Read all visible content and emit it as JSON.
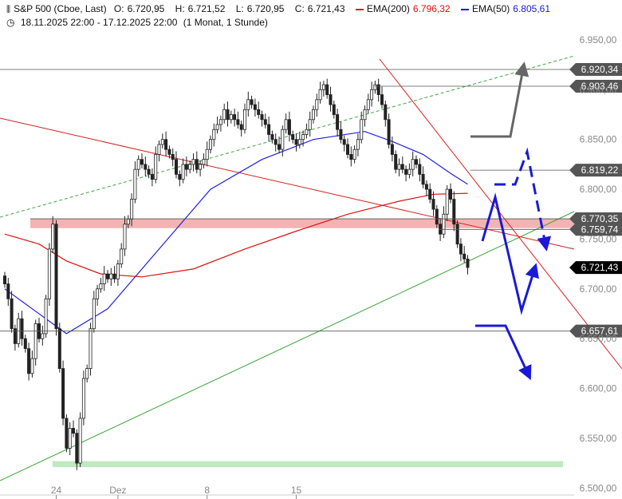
{
  "header": {
    "symbol_name": "S&P 500 (Cboe, Last)",
    "ohlc": {
      "o_label": "O:",
      "o": "6.720,95",
      "h_label": "H:",
      "h": "6.721,52",
      "l_label": "L:",
      "l": "6.720,95",
      "c_label": "C:",
      "c": "6.721,43"
    },
    "ema200_label": "EMA(200)",
    "ema200_value": "6.796,32",
    "ema200_color": "#e01010",
    "ema50_label": "EMA(50)",
    "ema50_value": "6.805,61",
    "ema50_color": "#1a1ad6",
    "range": "18.11.2025 22:00 - 17.12.2025 22:00",
    "interval": "(1 Monat, 1 Stunde)"
  },
  "chart_data": {
    "type": "candlestick",
    "y_axis": {
      "min": 6493,
      "max": 6958,
      "ticks": [
        6500,
        6550,
        6600,
        6650,
        6700,
        6750,
        6800,
        6850,
        6900,
        6950
      ],
      "tick_labels": [
        "6.500,00",
        "6.550,00",
        "6.600,00",
        "6.650,00",
        "6.700,00",
        "6.750,00",
        "6.800,00",
        "6.850,00",
        "6.900,00",
        "6.950,00"
      ]
    },
    "x_axis": {
      "tick_labels": [
        "24",
        "Dez",
        "8",
        "15"
      ],
      "tick_index": [
        15,
        33,
        59,
        85
      ]
    },
    "close_series": [
      6705,
      6690,
      6660,
      6645,
      6670,
      6650,
      6640,
      6615,
      6630,
      6665,
      6650,
      6655,
      6690,
      6740,
      6765,
      6660,
      6620,
      6570,
      6540,
      6560,
      6555,
      6525,
      6570,
      6610,
      6620,
      6660,
      6690,
      6700,
      6705,
      6715,
      6710,
      6715,
      6710,
      6725,
      6740,
      6765,
      6770,
      6790,
      6820,
      6830,
      6825,
      6820,
      6815,
      6810,
      6835,
      6845,
      6850,
      6840,
      6835,
      6830,
      6815,
      6810,
      6825,
      6820,
      6825,
      6830,
      6820,
      6825,
      6830,
      6840,
      6850,
      6860,
      6865,
      6870,
      6880,
      6870,
      6875,
      6870,
      6865,
      6860,
      6880,
      6890,
      6885,
      6880,
      6875,
      6870,
      6865,
      6855,
      6850,
      6845,
      6840,
      6860,
      6870,
      6855,
      6850,
      6845,
      6850,
      6855,
      6860,
      6870,
      6880,
      6890,
      6900,
      6905,
      6895,
      6885,
      6875,
      6860,
      6850,
      6845,
      6835,
      6830,
      6840,
      6850,
      6870,
      6880,
      6890,
      6900,
      6905,
      6895,
      6885,
      6870,
      6845,
      6835,
      6820,
      6825,
      6820,
      6815,
      6820,
      6830,
      6825,
      6815,
      6805,
      6800,
      6790,
      6780,
      6765,
      6755,
      6775,
      6800,
      6790,
      6765,
      6745,
      6735,
      6730,
      6721.43
    ],
    "ema200": [
      [
        0,
        6755
      ],
      [
        10,
        6745
      ],
      [
        18,
        6728
      ],
      [
        28,
        6715
      ],
      [
        40,
        6712
      ],
      [
        55,
        6720
      ],
      [
        70,
        6740
      ],
      [
        85,
        6758
      ],
      [
        100,
        6775
      ],
      [
        115,
        6788
      ],
      [
        125,
        6795
      ],
      [
        135,
        6796
      ]
    ],
    "ema50": [
      [
        0,
        6700
      ],
      [
        8,
        6680
      ],
      [
        18,
        6655
      ],
      [
        30,
        6680
      ],
      [
        45,
        6740
      ],
      [
        60,
        6800
      ],
      [
        75,
        6830
      ],
      [
        90,
        6850
      ],
      [
        105,
        6858
      ],
      [
        113,
        6848
      ],
      [
        122,
        6835
      ],
      [
        130,
        6816
      ],
      [
        135,
        6805
      ]
    ],
    "levels": [
      {
        "value": 6920.34,
        "label": "6.920,34"
      },
      {
        "value": 6903.46,
        "label": "6.903,46"
      },
      {
        "value": 6819.22,
        "label": "6.819,22"
      },
      {
        "value": 6770.35,
        "label": "6.770,35"
      },
      {
        "value": 6759.74,
        "label": "6.759,74"
      },
      {
        "value": 6721.43,
        "label": "6.721,43"
      },
      {
        "value": 6657.61,
        "label": "6.657,61"
      }
    ],
    "resistance_zone": [
      6761,
      6770
    ],
    "support_zone": [
      6521,
      6527
    ]
  }
}
